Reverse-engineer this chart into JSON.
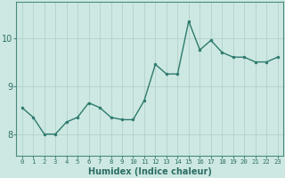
{
  "x": [
    0,
    1,
    2,
    3,
    4,
    5,
    6,
    7,
    8,
    9,
    10,
    11,
    12,
    13,
    14,
    15,
    16,
    17,
    18,
    19,
    20,
    21,
    22,
    23
  ],
  "y": [
    8.55,
    8.35,
    8.0,
    8.0,
    8.25,
    8.35,
    8.65,
    8.55,
    8.35,
    8.3,
    8.3,
    8.7,
    9.45,
    9.25,
    9.25,
    10.35,
    9.75,
    9.95,
    9.7,
    9.6,
    9.6,
    9.5,
    9.5,
    9.6
  ],
  "line_color": "#2d7a6e",
  "marker": "o",
  "marker_size": 2.0,
  "linewidth": 1.0,
  "bg_color": "#cde8e2",
  "grid_color": "#aeccc6",
  "xlabel": "Humidex (Indice chaleur)",
  "xlabel_fontsize": 7,
  "ytick_labels": [
    "8",
    "9",
    "10"
  ],
  "yticks": [
    8,
    9,
    10
  ],
  "xtick_labels": [
    "0",
    "1",
    "2",
    "3",
    "4",
    "5",
    "6",
    "7",
    "8",
    "9",
    "10",
    "11",
    "12",
    "13",
    "14",
    "15",
    "16",
    "17",
    "18",
    "19",
    "20",
    "21",
    "22",
    "23"
  ],
  "tick_color": "#2d6e65",
  "xtick_fontsize": 5.2,
  "ytick_fontsize": 7.0,
  "ylim": [
    7.55,
    10.75
  ],
  "xlim": [
    -0.5,
    23.5
  ],
  "spine_color": "#4a8a80"
}
